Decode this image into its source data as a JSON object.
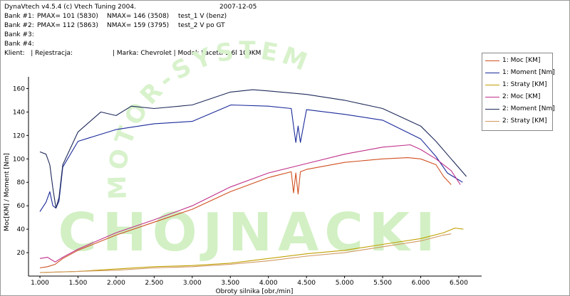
{
  "header": {
    "line1_left": "DynaVtech v4.5.4 (c) Vtech Tuning 2004.",
    "line1_right": "2007-12-05",
    "bank1_label": "Bank #1:",
    "bank1_pmax": "PMAX= 101 (5830)",
    "bank1_nmax": "NMAX= 146 (3508)",
    "bank1_test": "test_1 V (benz)",
    "bank2_label": "Bank #2:",
    "bank2_pmax": "PMAX= 112 (5863)",
    "bank2_nmax": "NMAX= 159 (3795)",
    "bank2_test": "test_2 V po GT",
    "bank3_label": "Bank #3:",
    "bank4_label": "Bank #4:",
    "client_line": "Klient:   | Rejestracja:",
    "car_line": "| Marka: Chevrolet | Model: Lacetti 1.6l 109KM"
  },
  "watermark": {
    "arc_text": "MOTOR-SYSTEM",
    "main_text": "CHOJNACKI"
  },
  "chart_data": {
    "type": "line",
    "xlabel": "Obroty silnika [obr./min]",
    "ylabel": "Moc[KM] / Moment [Nm]",
    "xlim": [
      850,
      6800
    ],
    "ylim": [
      0,
      170
    ],
    "x_ticks": [
      "1.000",
      "1.500",
      "2.000",
      "2.500",
      "3.000",
      "3.500",
      "4.000",
      "4.500",
      "5.000",
      "5.500",
      "6.000",
      "6.500"
    ],
    "x_tick_values": [
      1000,
      1500,
      2000,
      2500,
      3000,
      3500,
      4000,
      4500,
      5000,
      5500,
      6000,
      6500
    ],
    "y_ticks": [
      "20",
      "40",
      "60",
      "80",
      "100",
      "120",
      "140",
      "160"
    ],
    "y_tick_values": [
      20,
      40,
      60,
      80,
      100,
      120,
      140,
      160
    ],
    "grid": false,
    "legend_position": "top-right",
    "series": [
      {
        "name": "1: Moc [KM]",
        "color": "#d05020",
        "x": [
          1000,
          1100,
          1200,
          1300,
          1500,
          2000,
          2500,
          3000,
          3500,
          4000,
          4300,
          4330,
          4360,
          4390,
          4420,
          4500,
          5000,
          5500,
          5830,
          6000,
          6200,
          6300,
          6400
        ],
        "y": [
          7,
          8,
          10,
          15,
          22,
          35,
          46,
          57,
          72,
          84,
          89,
          71,
          88,
          70,
          89,
          91,
          97,
          100,
          101,
          100,
          95,
          85,
          78
        ]
      },
      {
        "name": "1: Moment [Nm]",
        "color": "#1a2a9a",
        "x": [
          1000,
          1080,
          1130,
          1170,
          1210,
          1250,
          1300,
          1500,
          2000,
          2500,
          3000,
          3508,
          4000,
          4300,
          4330,
          4360,
          4390,
          4420,
          4500,
          5000,
          5500,
          6000,
          6200,
          6350,
          6550
        ],
        "y": [
          55,
          63,
          72,
          60,
          58,
          64,
          93,
          115,
          125,
          130,
          132,
          146,
          145,
          143,
          128,
          114,
          128,
          114,
          142,
          138,
          133,
          117,
          102,
          88,
          80
        ]
      },
      {
        "name": "1: Straty [KM]",
        "color": "#c0a000",
        "x": [
          1000,
          1500,
          2000,
          2500,
          3000,
          3500,
          4000,
          4500,
          5000,
          5500,
          6000,
          6300,
          6450,
          6560
        ],
        "y": [
          3,
          4,
          6,
          8,
          9,
          11,
          15,
          19,
          22,
          27,
          32,
          37,
          41,
          40
        ]
      },
      {
        "name": "2: Moc [KM]",
        "color": "#c0308a",
        "x": [
          1000,
          1100,
          1200,
          1300,
          1500,
          2000,
          2500,
          3000,
          3500,
          4000,
          4500,
          5000,
          5500,
          5863,
          6000,
          6200,
          6400,
          6520
        ],
        "y": [
          15,
          16,
          12,
          16,
          23,
          37,
          48,
          60,
          76,
          88,
          96,
          104,
          110,
          112,
          108,
          100,
          90,
          78
        ]
      },
      {
        "name": "2: Moment [Nm]",
        "color": "#1e2a5a",
        "x": [
          1000,
          1080,
          1130,
          1170,
          1210,
          1250,
          1300,
          1500,
          1800,
          2000,
          2200,
          2500,
          3000,
          3500,
          3795,
          4000,
          4500,
          5000,
          5500,
          6000,
          6200,
          6400,
          6600
        ],
        "y": [
          106,
          104,
          95,
          75,
          58,
          67,
          95,
          123,
          140,
          137,
          145,
          143,
          146,
          157,
          159,
          158,
          155,
          150,
          143,
          128,
          115,
          100,
          85
        ]
      },
      {
        "name": "2: Straty [KM]",
        "color": "#d09860",
        "x": [
          1000,
          1500,
          2000,
          2500,
          3000,
          3500,
          4000,
          4500,
          5000,
          5500,
          6000,
          6300,
          6400
        ],
        "y": [
          3,
          4,
          5,
          7,
          8,
          10,
          13,
          17,
          20,
          25,
          30,
          35,
          36
        ]
      }
    ]
  }
}
